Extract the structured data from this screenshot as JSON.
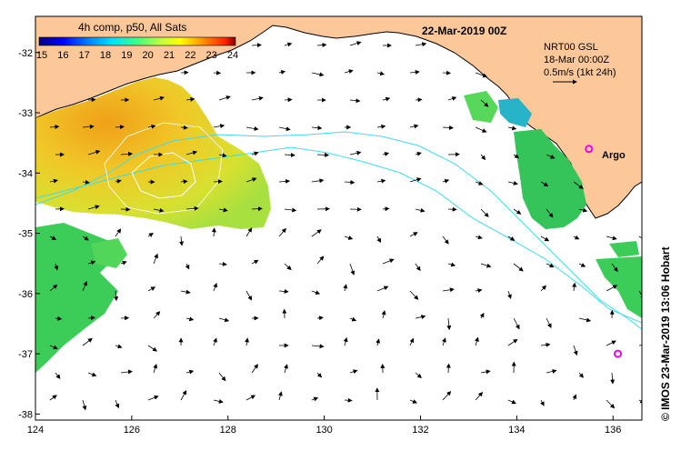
{
  "map": {
    "colorbar_title": "4h comp, p50, All Sats",
    "colorbar_ticks": [
      "15",
      "16",
      "17",
      "18",
      "19",
      "20",
      "21",
      "22",
      "23",
      "24"
    ],
    "date_title": "22-Mar-2019 00Z",
    "info_lines": [
      "NRT00 GSL",
      "18-Mar 00:00Z",
      "0.5m/s (1kt 24h)"
    ],
    "argo_label": "Argo",
    "credit": "© IMOS 23-Mar-2019 13:06 Hobart",
    "x_ticks": [
      "124",
      "126",
      "128",
      "130",
      "132",
      "134",
      "136"
    ],
    "y_ticks": [
      "-32",
      "-33",
      "-34",
      "-35",
      "-36",
      "-37",
      "-38"
    ],
    "x_range": [
      124,
      136.6
    ],
    "y_range": [
      -38.1,
      -31.4
    ],
    "colors": {
      "land": "#fdc899",
      "altimetry_track": "#3fdcea",
      "argo_marker": "#ee00ee"
    },
    "argo_floats": [
      {
        "lon": 135.5,
        "lat": -33.6
      },
      {
        "lon": 136.1,
        "lat": -37.0
      }
    ]
  }
}
